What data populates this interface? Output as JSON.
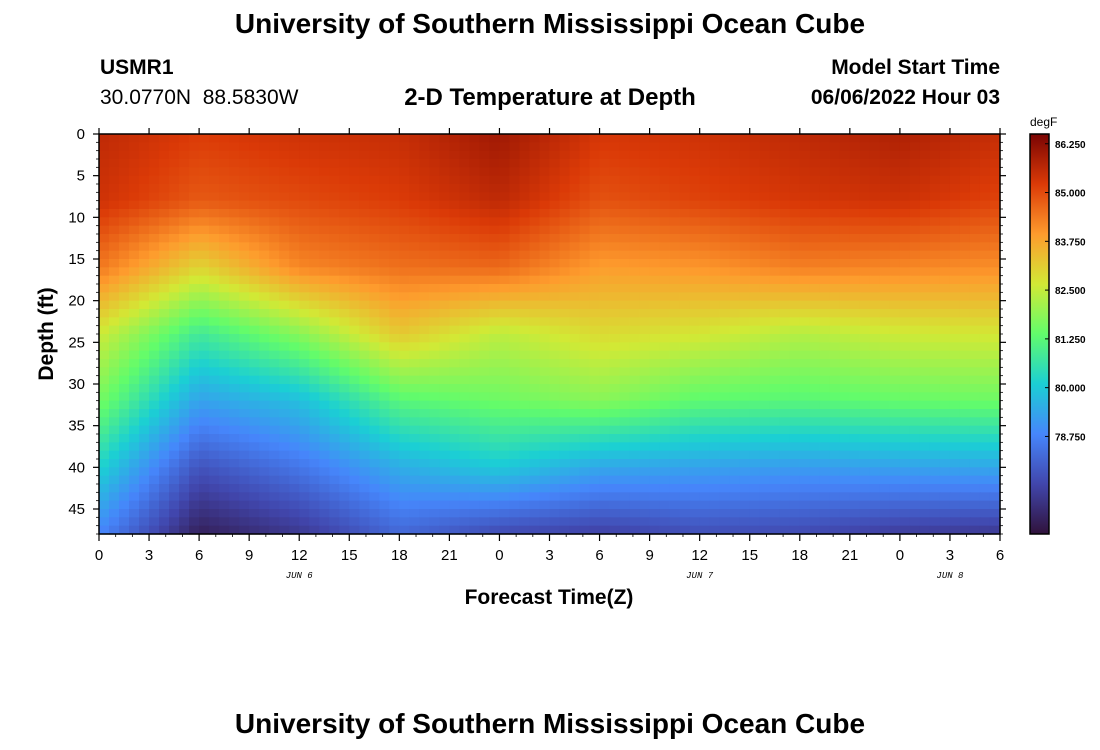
{
  "page": {
    "title": "University of Southern Mississippi Ocean Cube",
    "station_id": "USMR1",
    "station_coords": "30.0770N  88.5830W",
    "chart_subtitle": "2-D Temperature at Depth",
    "model_start_label": "Model Start Time",
    "model_start_value": "06/06/2022 Hour 03",
    "footer_title": "University of Southern Mississippi Ocean Cube"
  },
  "colors": {
    "colormap": [
      "#30123b",
      "#4146ac",
      "#4686fb",
      "#1bcfd4",
      "#62fc6b",
      "#d2e935",
      "#fe9b2d",
      "#db3a07",
      "#7a0403"
    ]
  },
  "chart_data": {
    "type": "heatmap",
    "title": "2-D Temperature at Depth",
    "xlabel": "Forecast Time(Z)",
    "ylabel": "Depth (ft)",
    "x_ticks": [
      "0",
      "3",
      "6",
      "9",
      "12",
      "15",
      "18",
      "21",
      "0",
      "3",
      "6",
      "9",
      "12",
      "15",
      "18",
      "21",
      "0",
      "3",
      "6"
    ],
    "x_range_hours": [
      0,
      54
    ],
    "date_labels": [
      {
        "label": "JUN 6",
        "hour": 12
      },
      {
        "label": "JUN 7",
        "hour": 36
      },
      {
        "label": "JUN 8",
        "hour": 51
      }
    ],
    "y_ticks": [
      0,
      5,
      10,
      15,
      20,
      25,
      30,
      35,
      40,
      45
    ],
    "y_range_ft": [
      0,
      48
    ],
    "colorbar": {
      "unit": "degF",
      "tick_labels": [
        "86.250",
        "85.000",
        "83.750",
        "82.500",
        "81.250",
        "80.000",
        "78.750"
      ],
      "range": [
        76.25,
        86.5
      ]
    },
    "grid_hours": [
      0,
      6,
      12,
      18,
      24,
      30,
      36,
      42,
      48,
      54
    ],
    "grid_depths_ft": [
      0,
      8,
      16,
      24,
      32,
      40,
      48
    ],
    "temperature_degF": [
      [
        85.6,
        85.2,
        85.4,
        85.5,
        86.0,
        85.3,
        85.4,
        85.6,
        85.8,
        85.5
      ],
      [
        85.4,
        84.8,
        85.0,
        85.2,
        85.6,
        84.9,
        85.1,
        85.3,
        85.4,
        85.1
      ],
      [
        84.4,
        83.0,
        84.2,
        84.5,
        84.6,
        83.9,
        84.0,
        84.3,
        84.2,
        84.1
      ],
      [
        82.6,
        80.8,
        81.8,
        83.2,
        82.4,
        82.9,
        82.7,
        82.3,
        82.6,
        82.7
      ],
      [
        81.6,
        79.3,
        79.8,
        81.2,
        81.5,
        81.8,
        81.3,
        81.2,
        81.4,
        81.5
      ],
      [
        80.2,
        77.8,
        78.5,
        79.5,
        80.0,
        79.4,
        79.3,
        79.2,
        79.3,
        79.4
      ],
      [
        78.8,
        76.6,
        77.2,
        78.2,
        77.6,
        77.4,
        77.7,
        77.6,
        77.3,
        77.2
      ]
    ]
  }
}
